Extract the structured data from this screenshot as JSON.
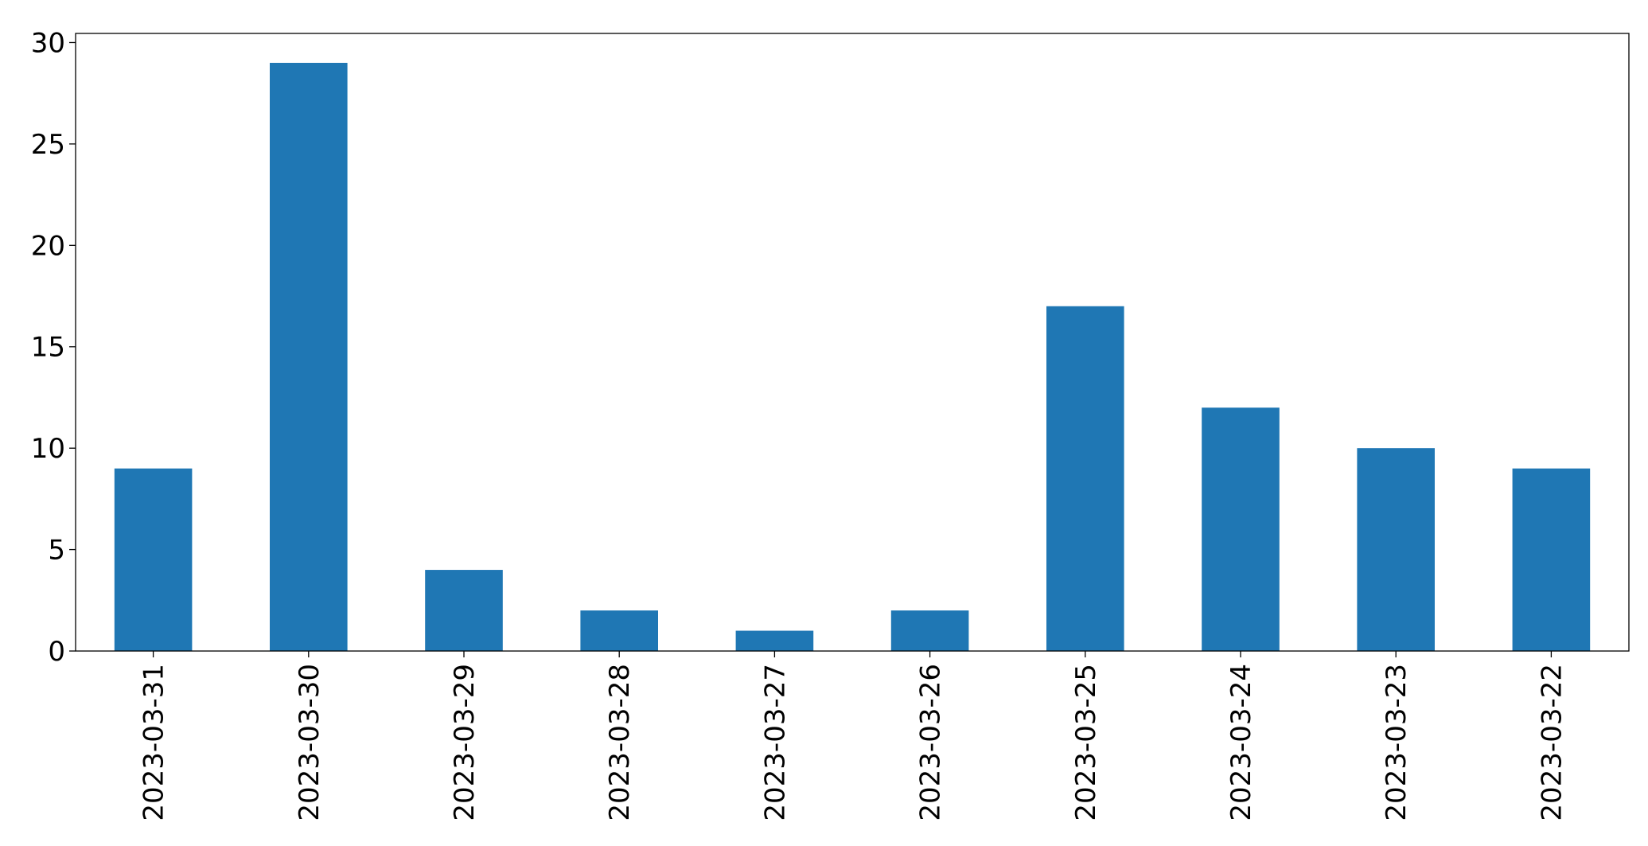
{
  "chart_data": {
    "type": "bar",
    "title": "",
    "xlabel": "",
    "ylabel": "",
    "categories": [
      "2023-03-31",
      "2023-03-30",
      "2023-03-29",
      "2023-03-28",
      "2023-03-27",
      "2023-03-26",
      "2023-03-25",
      "2023-03-24",
      "2023-03-23",
      "2023-03-22"
    ],
    "values": [
      9,
      29,
      4,
      2,
      1,
      2,
      17,
      12,
      10,
      9
    ],
    "ylim": [
      0,
      30.45
    ],
    "yticks": [
      0,
      5,
      10,
      15,
      20,
      25,
      30
    ],
    "bar_color": "#1f77b4",
    "grid": false,
    "legend": "none"
  }
}
